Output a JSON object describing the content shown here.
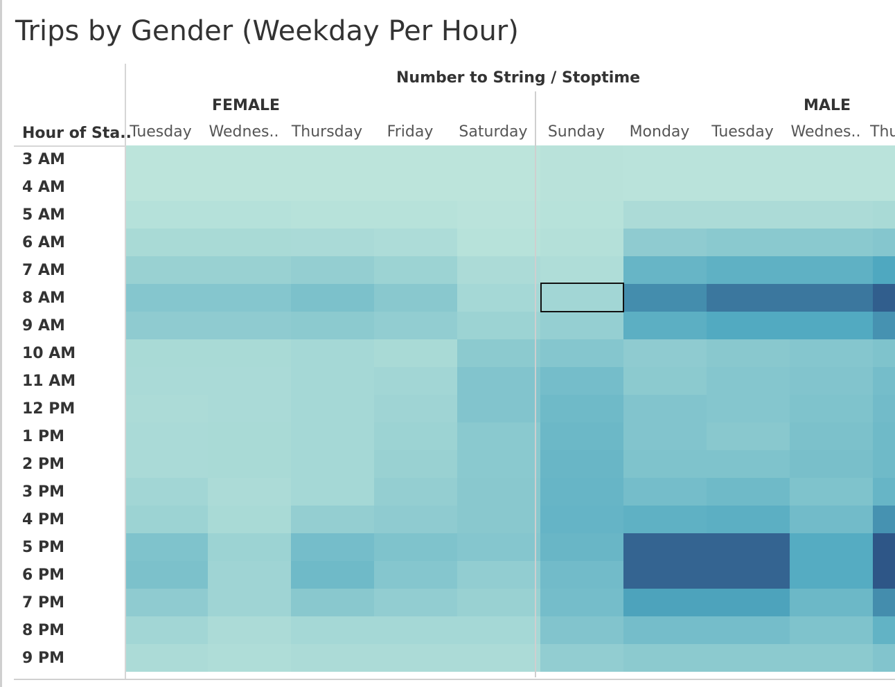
{
  "title": "Trips by Gender (Weekday Per Hour)",
  "column_field": "Number to String / Stoptime",
  "row_field": "Hour of Sta..",
  "groups": [
    "FEMALE",
    "MALE"
  ],
  "day_labels": [
    "Tuesday",
    "Wednes..",
    "Thursday",
    "Friday",
    "Saturday",
    "Sunday",
    "Monday",
    "Tuesday",
    "Wednes..",
    "Thu"
  ],
  "hours": [
    "3 AM",
    "4 AM",
    "5 AM",
    "6 AM",
    "7 AM",
    "8 AM",
    "9 AM",
    "10 AM",
    "11 AM",
    "12 PM",
    "1 PM",
    "2 PM",
    "3 PM",
    "4 PM",
    "5 PM",
    "6 PM",
    "7 PM",
    "8 PM",
    "9 PM"
  ],
  "colors": {
    "low": "#bfe6dc",
    "mid": "#4fa8c0",
    "high": "#2e5687",
    "selected_border": "#111111"
  },
  "chart_data": {
    "type": "heatmap",
    "title": "Trips by Gender (Weekday Per Hour)",
    "xlabel": "Number to String / Stoptime",
    "ylabel": "Hour of Sta..",
    "groups": [
      {
        "name": "FEMALE",
        "days": [
          "Tuesday",
          "Wednes..",
          "Thursday",
          "Friday",
          "Saturday"
        ]
      },
      {
        "name": "MALE",
        "days": [
          "Sunday",
          "Monday",
          "Tuesday",
          "Wednes..",
          "Thu"
        ]
      }
    ],
    "columns": [
      "FEMALE Tuesday",
      "FEMALE Wednes..",
      "FEMALE Thursday",
      "FEMALE Friday",
      "FEMALE Saturday",
      "MALE Sunday",
      "MALE Monday",
      "MALE Tuesday",
      "MALE Wednes..",
      "MALE Thu"
    ],
    "rows": [
      "3 AM",
      "4 AM",
      "5 AM",
      "6 AM",
      "7 AM",
      "8 AM",
      "9 AM",
      "10 AM",
      "11 AM",
      "12 PM",
      "1 PM",
      "2 PM",
      "3 PM",
      "4 PM",
      "5 PM",
      "6 PM",
      "7 PM",
      "8 PM",
      "9 PM"
    ],
    "value_scale": "relative intensity 0-1",
    "selected_cell": {
      "row": "8 AM",
      "column": "MALE Sunday"
    },
    "values": [
      [
        0.02,
        0.02,
        0.02,
        0.02,
        0.02,
        0.04,
        0.03,
        0.03,
        0.03,
        0.03
      ],
      [
        0.02,
        0.02,
        0.02,
        0.02,
        0.02,
        0.04,
        0.03,
        0.03,
        0.03,
        0.03
      ],
      [
        0.06,
        0.06,
        0.05,
        0.05,
        0.03,
        0.05,
        0.12,
        0.12,
        0.12,
        0.14
      ],
      [
        0.14,
        0.14,
        0.13,
        0.11,
        0.05,
        0.07,
        0.3,
        0.33,
        0.33,
        0.36
      ],
      [
        0.24,
        0.24,
        0.27,
        0.22,
        0.12,
        0.1,
        0.55,
        0.6,
        0.6,
        0.7
      ],
      [
        0.36,
        0.36,
        0.42,
        0.34,
        0.16,
        0.18,
        0.8,
        0.88,
        0.88,
        0.97
      ],
      [
        0.3,
        0.3,
        0.32,
        0.28,
        0.22,
        0.26,
        0.62,
        0.68,
        0.68,
        0.78
      ],
      [
        0.14,
        0.14,
        0.16,
        0.14,
        0.32,
        0.36,
        0.3,
        0.34,
        0.36,
        0.4
      ],
      [
        0.13,
        0.13,
        0.16,
        0.18,
        0.38,
        0.46,
        0.32,
        0.36,
        0.38,
        0.46
      ],
      [
        0.12,
        0.13,
        0.16,
        0.2,
        0.38,
        0.5,
        0.38,
        0.36,
        0.4,
        0.48
      ],
      [
        0.13,
        0.14,
        0.16,
        0.22,
        0.33,
        0.52,
        0.38,
        0.34,
        0.42,
        0.5
      ],
      [
        0.13,
        0.14,
        0.16,
        0.24,
        0.33,
        0.54,
        0.4,
        0.4,
        0.44,
        0.5
      ],
      [
        0.18,
        0.12,
        0.16,
        0.27,
        0.34,
        0.55,
        0.46,
        0.5,
        0.4,
        0.55
      ],
      [
        0.22,
        0.14,
        0.27,
        0.3,
        0.34,
        0.56,
        0.6,
        0.62,
        0.48,
        0.78
      ],
      [
        0.4,
        0.22,
        0.46,
        0.4,
        0.36,
        0.54,
        0.95,
        0.95,
        0.66,
        1.0
      ],
      [
        0.42,
        0.2,
        0.5,
        0.36,
        0.28,
        0.48,
        0.95,
        0.95,
        0.66,
        1.0
      ],
      [
        0.3,
        0.2,
        0.34,
        0.28,
        0.24,
        0.46,
        0.72,
        0.72,
        0.52,
        0.8
      ],
      [
        0.18,
        0.12,
        0.16,
        0.16,
        0.16,
        0.38,
        0.46,
        0.46,
        0.4,
        0.58
      ],
      [
        0.12,
        0.1,
        0.12,
        0.12,
        0.12,
        0.28,
        0.32,
        0.32,
        0.32,
        0.38
      ]
    ]
  }
}
